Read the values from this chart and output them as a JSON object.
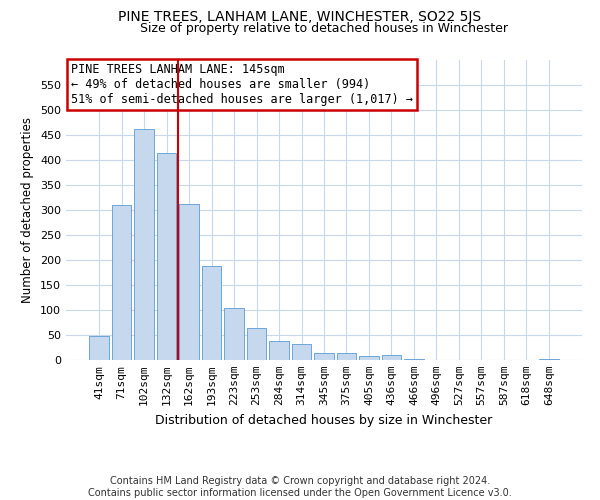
{
  "title": "PINE TREES, LANHAM LANE, WINCHESTER, SO22 5JS",
  "subtitle": "Size of property relative to detached houses in Winchester",
  "xlabel": "Distribution of detached houses by size in Winchester",
  "ylabel": "Number of detached properties",
  "bar_labels": [
    "41sqm",
    "71sqm",
    "102sqm",
    "132sqm",
    "162sqm",
    "193sqm",
    "223sqm",
    "253sqm",
    "284sqm",
    "314sqm",
    "345sqm",
    "375sqm",
    "405sqm",
    "436sqm",
    "466sqm",
    "496sqm",
    "527sqm",
    "557sqm",
    "587sqm",
    "618sqm",
    "648sqm"
  ],
  "bar_values": [
    48,
    310,
    463,
    414,
    312,
    188,
    105,
    65,
    38,
    32,
    14,
    15,
    8,
    10,
    3,
    1,
    0,
    0,
    0,
    0,
    2
  ],
  "bar_color": "#c5d8ed",
  "bar_edge_color": "#5b9bd5",
  "ylim": [
    0,
    600
  ],
  "yticks": [
    0,
    50,
    100,
    150,
    200,
    250,
    300,
    350,
    400,
    450,
    500,
    550
  ],
  "vline_x": 3.5,
  "vline_color": "#cc0000",
  "annotation_line1": "PINE TREES LANHAM LANE: 145sqm",
  "annotation_line2": "← 49% of detached houses are smaller (994)",
  "annotation_line3": "51% of semi-detached houses are larger (1,017) →",
  "annotation_box_color": "#cc0000",
  "grid_color": "#c8d8e8",
  "footer1": "Contains HM Land Registry data © Crown copyright and database right 2024.",
  "footer2": "Contains public sector information licensed under the Open Government Licence v3.0.",
  "title_fontsize": 10,
  "subtitle_fontsize": 9,
  "xlabel_fontsize": 9,
  "ylabel_fontsize": 8.5,
  "tick_fontsize": 8,
  "annotation_fontsize": 8.5,
  "footer_fontsize": 7
}
